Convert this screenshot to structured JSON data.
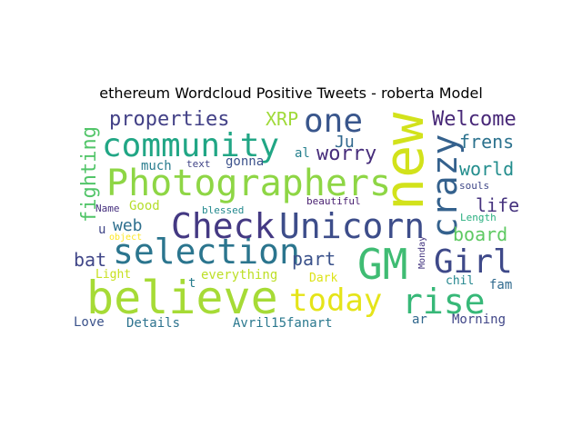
{
  "chart_data": {
    "type": "wordcloud",
    "title": "ethereum Wordcloud Positive Tweets - roberta Model",
    "words": [
      {
        "text": "believe",
        "weight": 100,
        "color": "#a6db36"
      },
      {
        "text": "new",
        "weight": 98,
        "color": "#d2e21b"
      },
      {
        "text": "Photographers",
        "weight": 92,
        "color": "#8ed645"
      },
      {
        "text": "Unicorn",
        "weight": 90,
        "color": "#3d4d8a"
      },
      {
        "text": "selection",
        "weight": 88,
        "color": "#2b758e"
      },
      {
        "text": "GM",
        "weight": 86,
        "color": "#3fbc73"
      },
      {
        "text": "Check",
        "weight": 82,
        "color": "#443983"
      },
      {
        "text": "community",
        "weight": 80,
        "color": "#21a685"
      },
      {
        "text": "rise",
        "weight": 78,
        "color": "#37b878"
      },
      {
        "text": "today",
        "weight": 75,
        "color": "#e5e419"
      },
      {
        "text": "crazy",
        "weight": 74,
        "color": "#34618d"
      },
      {
        "text": "Girl",
        "weight": 72,
        "color": "#3e4989"
      },
      {
        "text": "one",
        "weight": 70,
        "color": "#39568c"
      },
      {
        "text": "properties",
        "weight": 50,
        "color": "#424086"
      },
      {
        "text": "fighting",
        "weight": 50,
        "color": "#52c569"
      },
      {
        "text": "worry",
        "weight": 49,
        "color": "#472d7b"
      },
      {
        "text": "Welcome",
        "weight": 48,
        "color": "#482878"
      },
      {
        "text": "XRP",
        "weight": 47,
        "color": "#a0da39"
      },
      {
        "text": "frens",
        "weight": 46,
        "color": "#2c728e"
      },
      {
        "text": "world",
        "weight": 46,
        "color": "#228d8d"
      },
      {
        "text": "life",
        "weight": 45,
        "color": "#46337e"
      },
      {
        "text": "board",
        "weight": 45,
        "color": "#5ec962"
      },
      {
        "text": "part",
        "weight": 44,
        "color": "#3b528b"
      },
      {
        "text": "bat",
        "weight": 42,
        "color": "#404688"
      },
      {
        "text": "web",
        "weight": 40,
        "color": "#2e6f8e"
      },
      {
        "text": "Ju",
        "weight": 40,
        "color": "#31688e"
      },
      {
        "text": "much",
        "weight": 30,
        "color": "#287c8e"
      },
      {
        "text": "gonna",
        "weight": 30,
        "color": "#3b518b"
      },
      {
        "text": "al",
        "weight": 30,
        "color": "#27808e"
      },
      {
        "text": "Good",
        "weight": 30,
        "color": "#b5de2b"
      },
      {
        "text": "everything",
        "weight": 29,
        "color": "#bddf26"
      },
      {
        "text": "Light",
        "weight": 28,
        "color": "#c8e020"
      },
      {
        "text": "Dark",
        "weight": 28,
        "color": "#dde318"
      },
      {
        "text": "Love",
        "weight": 28,
        "color": "#3b528b"
      },
      {
        "text": "Details",
        "weight": 28,
        "color": "#2c728e"
      },
      {
        "text": "Avril15fanart",
        "weight": 28,
        "color": "#2a788e"
      },
      {
        "text": "Morning",
        "weight": 28,
        "color": "#404688"
      },
      {
        "text": "ar",
        "weight": 28,
        "color": "#31688e"
      },
      {
        "text": "fam",
        "weight": 28,
        "color": "#306a8e"
      },
      {
        "text": "chil",
        "weight": 27,
        "color": "#24868e"
      },
      {
        "text": "u",
        "weight": 27,
        "color": "#404688"
      },
      {
        "text": "t",
        "weight": 27,
        "color": "#287d8e"
      },
      {
        "text": "text",
        "weight": 22,
        "color": "#414487"
      },
      {
        "text": "Name",
        "weight": 20,
        "color": "#46307e"
      },
      {
        "text": "blessed",
        "weight": 20,
        "color": "#23898e"
      },
      {
        "text": "beautiful",
        "weight": 20,
        "color": "#481f70"
      },
      {
        "text": "souls",
        "weight": 20,
        "color": "#3f4788"
      },
      {
        "text": "Length",
        "weight": 20,
        "color": "#29af7f"
      },
      {
        "text": "object",
        "weight": 18,
        "color": "#fde725"
      },
      {
        "text": "Monday",
        "weight": 16,
        "color": "#453781"
      }
    ]
  }
}
